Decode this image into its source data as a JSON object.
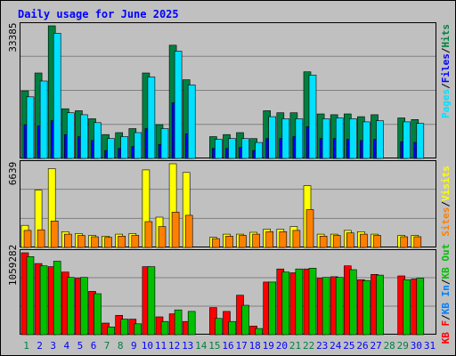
{
  "chart_data": [
    {
      "type": "bar",
      "panel": "top",
      "title": "Daily usage for June 2025",
      "ymax_label": "33385",
      "y_max": 33385,
      "categories": [
        "1",
        "2",
        "3",
        "4",
        "5",
        "6",
        "7",
        "8",
        "9",
        "10",
        "11",
        "12",
        "13",
        "14",
        "15",
        "16",
        "17",
        "18",
        "19",
        "20",
        "21",
        "22",
        "23",
        "24",
        "25",
        "26",
        "27",
        "28",
        "29",
        "30",
        "31"
      ],
      "series": [
        {
          "name": "Hits",
          "color": "#008040",
          "values": [
            17000,
            21500,
            33385,
            12500,
            12000,
            10000,
            6000,
            6500,
            7500,
            21500,
            8500,
            28500,
            19800,
            0,
            5500,
            6000,
            6500,
            5000,
            12000,
            11500,
            11500,
            21800,
            11200,
            11000,
            11200,
            10500,
            11000,
            0,
            10200,
            9800,
            0
          ]
        },
        {
          "name": "Files",
          "color": "#0000ff",
          "values": [
            8500,
            8200,
            9500,
            6000,
            5500,
            4500,
            2000,
            2500,
            3000,
            7500,
            3500,
            14000,
            6200,
            0,
            2500,
            2500,
            2800,
            2000,
            5000,
            5000,
            5500,
            8000,
            5000,
            5000,
            4800,
            4500,
            4800,
            0,
            4200,
            4000,
            0
          ]
        },
        {
          "name": "Pages",
          "color": "#00e0ff",
          "values": [
            15500,
            19500,
            31500,
            11500,
            11000,
            9000,
            5000,
            5500,
            6500,
            20500,
            7500,
            27000,
            18500,
            0,
            4800,
            5000,
            5000,
            4000,
            10500,
            10000,
            10000,
            21000,
            10000,
            10200,
            10000,
            9200,
            9500,
            0,
            9200,
            8800,
            0
          ]
        }
      ]
    },
    {
      "type": "bar",
      "panel": "middle",
      "ymax_label": "6639",
      "y_max": 6639,
      "categories": [
        "1",
        "2",
        "3",
        "4",
        "5",
        "6",
        "7",
        "8",
        "9",
        "10",
        "11",
        "12",
        "13",
        "14",
        "15",
        "16",
        "17",
        "18",
        "19",
        "20",
        "21",
        "22",
        "23",
        "24",
        "25",
        "26",
        "27",
        "28",
        "29",
        "30",
        "31"
      ],
      "series": [
        {
          "name": "Visits",
          "color": "#ffff00",
          "values": [
            1750,
            4550,
            6250,
            1250,
            1100,
            950,
            900,
            1050,
            1100,
            6150,
            2400,
            6639,
            5950,
            0,
            800,
            1050,
            1050,
            1200,
            1450,
            1450,
            1650,
            4900,
            1050,
            1050,
            1350,
            1250,
            1050,
            0,
            950,
            950,
            0
          ]
        },
        {
          "name": "Sites",
          "color": "#ff8000",
          "values": [
            1350,
            1400,
            2100,
            1050,
            950,
            850,
            800,
            900,
            950,
            2050,
            1650,
            2800,
            2550,
            0,
            700,
            900,
            950,
            1050,
            1250,
            1250,
            1350,
            3000,
            900,
            950,
            1150,
            1050,
            950,
            0,
            850,
            850,
            0
          ]
        }
      ]
    },
    {
      "type": "bar",
      "panel": "bottom",
      "ymax_label": "1059282",
      "y_max": 1059282,
      "categories": [
        "1",
        "2",
        "3",
        "4",
        "5",
        "6",
        "7",
        "8",
        "9",
        "10",
        "11",
        "12",
        "13",
        "14",
        "15",
        "16",
        "17",
        "18",
        "19",
        "20",
        "21",
        "22",
        "23",
        "24",
        "25",
        "26",
        "27",
        "28",
        "29",
        "30",
        "31"
      ],
      "weekend_days": [
        1,
        7,
        8,
        14,
        15,
        21,
        22,
        28,
        29
      ],
      "series": [
        {
          "name": "KB F",
          "color": "#ff0000",
          "values": [
            1059282,
            920000,
            880000,
            810000,
            730000,
            560000,
            150000,
            250000,
            200000,
            880000,
            230000,
            270000,
            170000,
            0,
            350000,
            300000,
            510000,
            110000,
            680000,
            850000,
            800000,
            850000,
            730000,
            750000,
            890000,
            710000,
            780000,
            0,
            760000,
            720000,
            0
          ]
        },
        {
          "name": "KB In",
          "color": "#0080ff",
          "values": [
            0,
            0,
            0,
            0,
            0,
            0,
            0,
            0,
            0,
            0,
            0,
            0,
            0,
            0,
            0,
            0,
            0,
            0,
            0,
            0,
            0,
            0,
            0,
            0,
            0,
            0,
            0,
            0,
            0,
            0,
            0
          ]
        },
        {
          "name": "KB Out",
          "color": "#00c000",
          "values": [
            1010000,
            890000,
            950000,
            740000,
            740000,
            530000,
            100000,
            200000,
            140000,
            880000,
            170000,
            320000,
            300000,
            0,
            210000,
            170000,
            380000,
            80000,
            680000,
            810000,
            850000,
            860000,
            740000,
            740000,
            840000,
            700000,
            770000,
            0,
            710000,
            730000,
            0
          ]
        }
      ]
    }
  ],
  "colors": {
    "frame_bg": "#c0c0c0",
    "plot_bg": "#c0c0c0",
    "title": "#0000ff",
    "day_label": "#0000ff",
    "weekend_label": "#008040",
    "gridline": "#808080",
    "border_dark": "#000000",
    "divider": "#ffffff"
  },
  "right_labels": {
    "top": [
      {
        "text": "Pages",
        "color": "#00e0ff"
      },
      {
        "text": "/",
        "color": "#000000"
      },
      {
        "text": "Files",
        "color": "#0000ff"
      },
      {
        "text": "/",
        "color": "#000000"
      },
      {
        "text": "Hits",
        "color": "#008040"
      }
    ],
    "middle": [
      {
        "text": "Sites",
        "color": "#ff8000"
      },
      {
        "text": "/",
        "color": "#000000"
      },
      {
        "text": "Visits",
        "color": "#ffff00"
      }
    ],
    "bottom": [
      {
        "text": "KB F",
        "color": "#ff0000"
      },
      {
        "text": "/",
        "color": "#000000"
      },
      {
        "text": "KB In",
        "color": "#0080ff"
      },
      {
        "text": "/",
        "color": "#000000"
      },
      {
        "text": "KB Out",
        "color": "#00c000"
      }
    ]
  }
}
